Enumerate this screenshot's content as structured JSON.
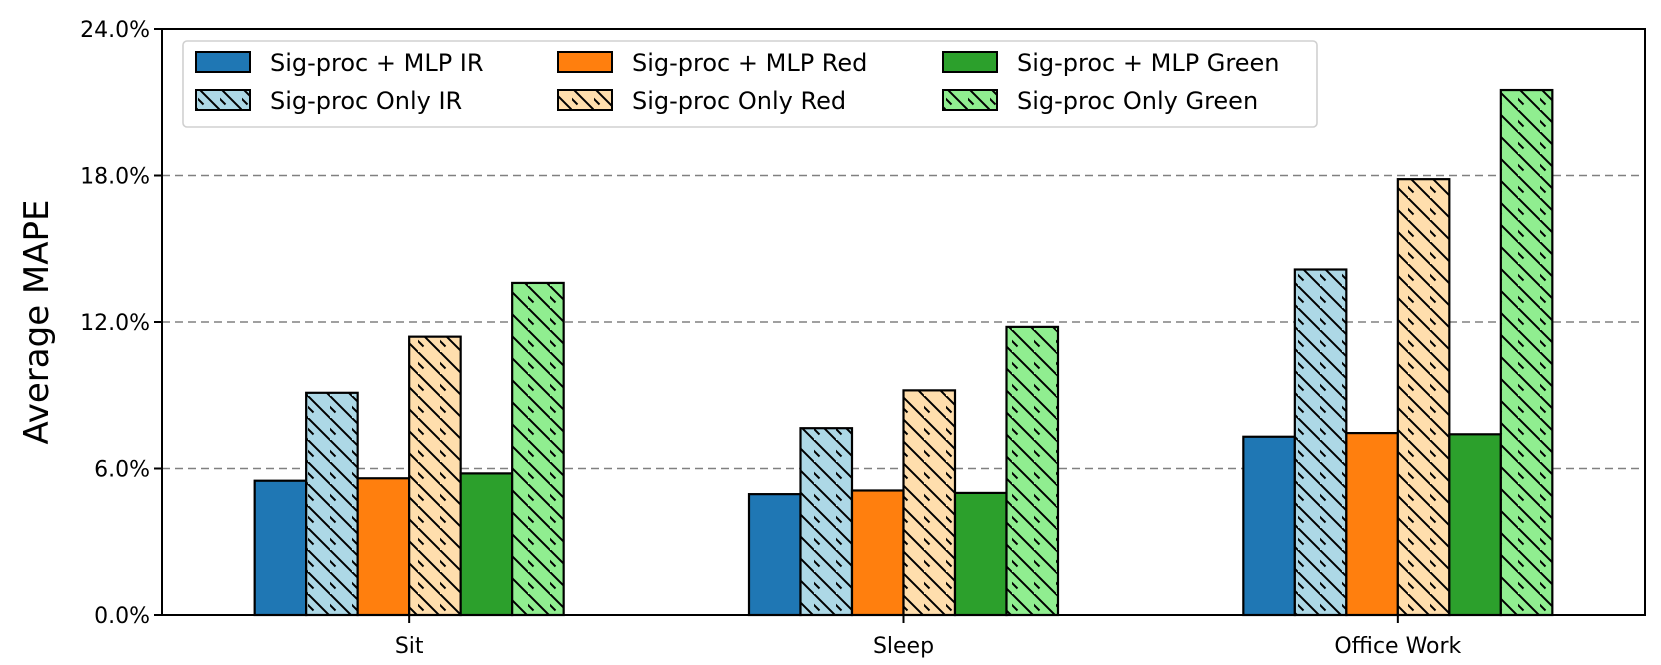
{
  "chart_data": {
    "type": "bar",
    "title": "",
    "xlabel": "",
    "ylabel": "Average MAPE",
    "ylim": [
      0,
      24
    ],
    "yticks": [
      0,
      6,
      12,
      18,
      24
    ],
    "ytick_labels": [
      "0.0%",
      "6.0%",
      "12.0%",
      "18.0%",
      "24.0%"
    ],
    "grid": "horizontal dashed",
    "legend_position": "top-left",
    "categories": [
      "Sit",
      "Sleep",
      "Office Work"
    ],
    "series": [
      {
        "name": "Sig-proc + MLP IR",
        "color": "#1f77b4",
        "hatched": false,
        "values": [
          5.5,
          4.95,
          7.3
        ]
      },
      {
        "name": "Sig-proc Only IR",
        "color": "#add8e6",
        "hatched": true,
        "values": [
          9.1,
          7.65,
          14.15
        ]
      },
      {
        "name": "Sig-proc + MLP Red",
        "color": "#ff7f0e",
        "hatched": false,
        "values": [
          5.6,
          5.1,
          7.45
        ]
      },
      {
        "name": "Sig-proc Only Red",
        "color": "#ffdead",
        "hatched": true,
        "values": [
          11.4,
          9.2,
          17.85
        ]
      },
      {
        "name": "Sig-proc + MLP Green",
        "color": "#2ca02c",
        "hatched": false,
        "values": [
          5.8,
          5.0,
          7.4
        ]
      },
      {
        "name": "Sig-proc Only Green",
        "color": "#90ee90",
        "hatched": true,
        "values": [
          13.6,
          11.8,
          21.5
        ]
      }
    ]
  }
}
